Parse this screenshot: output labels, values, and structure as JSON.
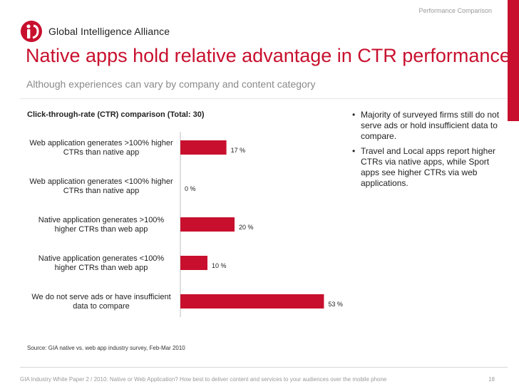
{
  "header": {
    "section_label": "Performance Comparison",
    "logo_text": "Global Intelligence Alliance"
  },
  "slide": {
    "title": "Native apps hold relative advantage in CTR performance",
    "subtitle": "Although experiences can vary by company and content category"
  },
  "chart_data": {
    "type": "bar",
    "orientation": "horizontal",
    "title": "Click-through-rate (CTR) comparison (Total: 30)",
    "categories": [
      [
        "Web application generates >100% higher",
        "CTRs than native app"
      ],
      [
        "Web application generates <100% higher",
        "CTRs than native app"
      ],
      [
        "Native application generates >100%",
        "higher CTRs than web app"
      ],
      [
        "Native application generates <100%",
        "higher CTRs than web app"
      ],
      [
        "We do not serve ads or have insufficient",
        "data to compare"
      ]
    ],
    "values": [
      17,
      0,
      20,
      10,
      53
    ],
    "value_labels": [
      "17 %",
      "0 %",
      "20 %",
      "10 %",
      "53 %"
    ],
    "unit": "%",
    "xlim": [
      0,
      100
    ],
    "color": "#c8102e",
    "grid": false,
    "legend": "none"
  },
  "notes": [
    "Majority of surveyed firms still do not serve ads or hold insufficient data to compare.",
    "Travel and Local apps report higher CTRs via native apps, while Sport apps see higher CTRs via web applications."
  ],
  "source": "Source: GIA native vs. web app industry survey, Feb-Mar 2010",
  "footer": {
    "text": "GIA Industry White Paper 2 / 2010: Native or Web Application? How best to deliver content and services to your audiences over the mobile phone",
    "page_number": "18"
  }
}
